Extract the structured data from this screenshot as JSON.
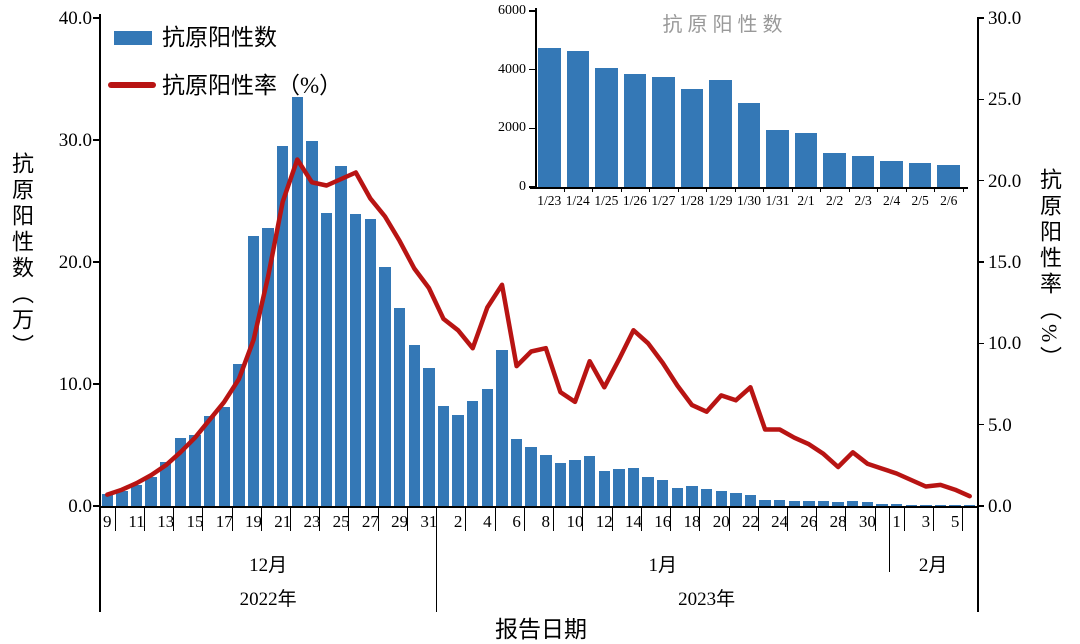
{
  "legend": {
    "bar_label": "抗原阳性数",
    "line_label": "抗原阳性率（%）"
  },
  "axes": {
    "left_title": "抗原阳性数（万）",
    "right_title": "抗原阳性率（%）",
    "x_title": "报告日期",
    "left_ticks": [
      "0.0",
      "10.0",
      "20.0",
      "30.0",
      "40.0"
    ],
    "right_ticks": [
      "0.0",
      "5.0",
      "10.0",
      "15.0",
      "20.0",
      "25.0",
      "30.0"
    ]
  },
  "colors": {
    "bar_blue": "#3478B6",
    "line_red": "#B81413",
    "inset_title_gray": "#999999",
    "axis_black": "#000000"
  },
  "chart_data": {
    "type": "bar+line dual-axis with inset bar chart",
    "x": [
      "12/9",
      "12/10",
      "12/11",
      "12/12",
      "12/13",
      "12/14",
      "12/15",
      "12/16",
      "12/17",
      "12/18",
      "12/19",
      "12/20",
      "12/21",
      "12/22",
      "12/23",
      "12/24",
      "12/25",
      "12/26",
      "12/27",
      "12/28",
      "12/29",
      "12/30",
      "12/31",
      "1/1",
      "1/2",
      "1/3",
      "1/4",
      "1/5",
      "1/6",
      "1/7",
      "1/8",
      "1/9",
      "1/10",
      "1/11",
      "1/12",
      "1/13",
      "1/14",
      "1/15",
      "1/16",
      "1/17",
      "1/18",
      "1/19",
      "1/20",
      "1/21",
      "1/22",
      "1/23",
      "1/24",
      "1/25",
      "1/26",
      "1/27",
      "1/28",
      "1/29",
      "1/30",
      "1/31",
      "2/1",
      "2/2",
      "2/3",
      "2/4",
      "2/5",
      "2/6"
    ],
    "x_tick_labels": [
      "9",
      "11",
      "13",
      "15",
      "17",
      "19",
      "21",
      "23",
      "25",
      "27",
      "29",
      "31",
      "2",
      "4",
      "6",
      "8",
      "10",
      "12",
      "14",
      "16",
      "18",
      "20",
      "22",
      "24",
      "26",
      "28",
      "30",
      "1",
      "3",
      "5"
    ],
    "series": [
      {
        "name": "抗原阳性数",
        "type": "bar",
        "axis": "left",
        "unit": "万",
        "values": [
          1.0,
          1.2,
          1.7,
          2.4,
          3.6,
          5.6,
          5.8,
          7.4,
          8.1,
          11.6,
          22.1,
          22.8,
          29.5,
          33.5,
          29.9,
          24.0,
          27.9,
          23.9,
          23.5,
          19.6,
          16.2,
          13.2,
          11.3,
          8.2,
          7.5,
          8.6,
          9.6,
          12.8,
          5.5,
          4.8,
          4.2,
          3.5,
          3.8,
          4.1,
          2.9,
          3.0,
          3.1,
          2.4,
          2.1,
          1.5,
          1.6,
          1.4,
          1.2,
          1.1,
          0.9,
          0.48,
          0.47,
          0.41,
          0.39,
          0.38,
          0.34,
          0.37,
          0.29,
          0.2,
          0.19,
          0.12,
          0.11,
          0.09,
          0.08,
          0.08
        ]
      },
      {
        "name": "抗原阳性率",
        "type": "line",
        "axis": "right",
        "unit": "%",
        "values": [
          0.7,
          1.0,
          1.4,
          1.9,
          2.5,
          3.3,
          4.2,
          5.3,
          6.4,
          7.8,
          10.2,
          14.1,
          18.7,
          21.3,
          19.9,
          19.7,
          20.1,
          20.5,
          18.9,
          17.8,
          16.3,
          14.6,
          13.4,
          11.5,
          10.8,
          9.7,
          12.2,
          13.6,
          8.6,
          9.5,
          9.7,
          7.0,
          6.4,
          8.9,
          7.3,
          9.0,
          10.8,
          10.0,
          8.8,
          7.4,
          6.2,
          5.8,
          6.8,
          6.5,
          7.3,
          4.7,
          4.7,
          4.2,
          3.8,
          3.2,
          2.4,
          3.3,
          2.6,
          2.3,
          2.0,
          1.6,
          1.2,
          1.3,
          1.0,
          0.6
        ]
      }
    ],
    "left_axis": {
      "min": 0,
      "max": 40,
      "tick_step": 10
    },
    "right_axis": {
      "min": 0,
      "max": 30,
      "tick_step": 5
    },
    "months": [
      {
        "label": "12月",
        "from": 0,
        "to": 22
      },
      {
        "label": "1月",
        "from": 23,
        "to": 53
      },
      {
        "label": "2月",
        "from": 54,
        "to": 59
      }
    ],
    "years": [
      {
        "label": "2022年",
        "from": 0,
        "to": 22
      },
      {
        "label": "2023年",
        "from": 23,
        "to": 59
      }
    ],
    "inset": {
      "type": "bar",
      "title": "抗原阳性数",
      "categories": [
        "1/23",
        "1/24",
        "1/25",
        "1/26",
        "1/27",
        "1/28",
        "1/29",
        "1/30",
        "1/31",
        "2/1",
        "2/2",
        "2/3",
        "2/4",
        "2/5",
        "2/6"
      ],
      "values": [
        4750,
        4650,
        4050,
        3850,
        3750,
        3350,
        3650,
        2850,
        1950,
        1850,
        1150,
        1050,
        900,
        820,
        750
      ],
      "ylim": [
        0,
        6000
      ],
      "yticks": [
        "0",
        "2000",
        "4000",
        "6000"
      ]
    }
  }
}
